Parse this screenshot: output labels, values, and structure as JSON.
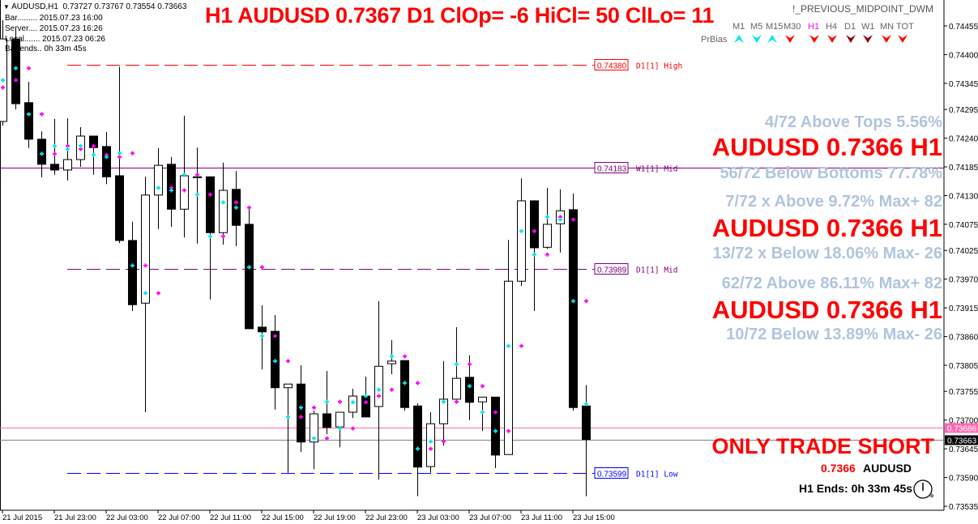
{
  "header": {
    "symbol_line": "AUDUSD,H1  0.73727 0.73767 0.73554 0.73663",
    "bar": "Bar......... 2015.07.23 16:00",
    "server": "Server.... 2015.07.23 16:26",
    "local": "Local....... 2015.07.23 06:26",
    "bar_ends": "Bar ends.. 0h 33m 45s"
  },
  "title": "H1 AUDUSD 0.7367 D1 ClOp= -6 HiCl= 50 ClLo= 11",
  "indicator_name": "!_PREVIOUS_MIDPOINT_DWM",
  "prbias": {
    "label": "PrBias",
    "timeframes": [
      {
        "tf": "M1",
        "dir": "up",
        "color": "#00e5ee"
      },
      {
        "tf": "M5",
        "dir": "down",
        "color": "#00e5ee"
      },
      {
        "tf": "M15",
        "dir": "up",
        "color": "#00e5ee"
      },
      {
        "tf": "M30",
        "dir": "down",
        "color": "#ff0000"
      },
      {
        "tf": "H1",
        "dir": "down",
        "color": "#ff0000",
        "active": true
      },
      {
        "tf": "H4",
        "dir": "down",
        "color": "#ff0000"
      },
      {
        "tf": "D1",
        "dir": "down",
        "color": "#8b0000"
      },
      {
        "tf": "W1",
        "dir": "down",
        "color": "#8b0000"
      },
      {
        "tf": "MN",
        "dir": "down",
        "color": "#ff0000"
      },
      {
        "tf": "TOT",
        "dir": "down",
        "color": "#ff0000"
      }
    ]
  },
  "stats": [
    {
      "text": "4/72 Above Tops 5.56%",
      "kind": "stat"
    },
    {
      "text": "AUDUSD 0.7366 H1",
      "kind": "big"
    },
    {
      "text": "56/72 Below Bottoms 77.78%",
      "kind": "stat"
    },
    {
      "text": "7/72 x Above 9.72% Max+ 82",
      "kind": "stat"
    },
    {
      "text": "AUDUSD 0.7366 H1",
      "kind": "big"
    },
    {
      "text": "13/72 x Below 18.06% Max- 26",
      "kind": "stat"
    },
    {
      "text": "62/72 Above 86.11% Max+ 82",
      "kind": "stat"
    },
    {
      "text": "AUDUSD 0.7366 H1",
      "kind": "big"
    },
    {
      "text": "10/72 Below 13.89% Max- 26",
      "kind": "stat"
    }
  ],
  "signal": "ONLY TRADE SHORT",
  "price_label": "0.7366",
  "symbol_label": "AUDUSD",
  "h1_ends": "H1 Ends: 0h 33m 45s",
  "chart_data": {
    "type": "candlestick",
    "symbol": "AUDUSD",
    "timeframe": "H1",
    "ylim": [
      0.73515,
      0.74505
    ],
    "y_ticks": [
      "0.74455",
      "0.74400",
      "0.74345",
      "0.74295",
      "0.74240",
      "0.74185",
      "0.74130",
      "0.74075",
      "0.74025",
      "0.73970",
      "0.73915",
      "0.73860",
      "0.73805",
      "0.73755",
      "0.73700",
      "0.73645",
      "0.73590",
      "0.73535"
    ],
    "x_ticks": [
      {
        "bar": 0,
        "label": "21 Jul 2015"
      },
      {
        "bar": 4,
        "label": "21 Jul 23:00"
      },
      {
        "bar": 8,
        "label": "22 Jul 03:00"
      },
      {
        "bar": 12,
        "label": "22 Jul 07:00"
      },
      {
        "bar": 16,
        "label": "22 Jul 11:00"
      },
      {
        "bar": 20,
        "label": "22 Jul 15:00"
      },
      {
        "bar": 24,
        "label": "22 Jul 19:00"
      },
      {
        "bar": 28,
        "label": "22 Jul 23:00"
      },
      {
        "bar": 32,
        "label": "23 Jul 03:00"
      },
      {
        "bar": 36,
        "label": "23 Jul 07:00"
      },
      {
        "bar": 40,
        "label": "23 Jul 11:00"
      },
      {
        "bar": 44,
        "label": "23 Jul 15:00"
      }
    ],
    "ohlc": [
      [
        0.74272,
        0.74466,
        0.74264,
        0.7443
      ],
      [
        0.7443,
        0.7445,
        0.74295,
        0.74306
      ],
      [
        0.74308,
        0.74348,
        0.74221,
        0.74238
      ],
      [
        0.74238,
        0.74253,
        0.74165,
        0.7419
      ],
      [
        0.7419,
        0.74277,
        0.7417,
        0.74179
      ],
      [
        0.74179,
        0.74278,
        0.74159,
        0.74199
      ],
      [
        0.74199,
        0.74261,
        0.74185,
        0.74244
      ],
      [
        0.74244,
        0.74244,
        0.7417,
        0.74222
      ],
      [
        0.74224,
        0.74252,
        0.74152,
        0.74166
      ],
      [
        0.74168,
        0.74377,
        0.74039,
        0.74044
      ],
      [
        0.74044,
        0.7408,
        0.73909,
        0.73921
      ],
      [
        0.73924,
        0.74166,
        0.73715,
        0.74131
      ],
      [
        0.74131,
        0.74221,
        0.74066,
        0.74188
      ],
      [
        0.7419,
        0.74204,
        0.7407,
        0.74104
      ],
      [
        0.74104,
        0.74283,
        0.7405,
        0.74168
      ],
      [
        0.74166,
        0.74222,
        0.74038,
        0.74165
      ],
      [
        0.74166,
        0.74166,
        0.73931,
        0.74059
      ],
      [
        0.74059,
        0.74193,
        0.74036,
        0.7414
      ],
      [
        0.74142,
        0.74177,
        0.74033,
        0.74073
      ],
      [
        0.74075,
        0.74107,
        0.73875,
        0.73875
      ],
      [
        0.73878,
        0.7392,
        0.73797,
        0.73869
      ],
      [
        0.7387,
        0.73901,
        0.7372,
        0.73762
      ],
      [
        0.73762,
        0.73769,
        0.73599,
        0.73769
      ],
      [
        0.73769,
        0.73805,
        0.73639,
        0.73658
      ],
      [
        0.73658,
        0.73718,
        0.73606,
        0.73712
      ],
      [
        0.73712,
        0.73794,
        0.73673,
        0.73686
      ],
      [
        0.73687,
        0.73715,
        0.73648,
        0.73715
      ],
      [
        0.73715,
        0.7376,
        0.73704,
        0.73746
      ],
      [
        0.73746,
        0.73783,
        0.73706,
        0.73706
      ],
      [
        0.73726,
        0.73928,
        0.73586,
        0.73803
      ],
      [
        0.73808,
        0.73853,
        0.73788,
        0.73813
      ],
      [
        0.73814,
        0.73814,
        0.73718,
        0.73724
      ],
      [
        0.73727,
        0.73732,
        0.73554,
        0.7361
      ],
      [
        0.73611,
        0.73715,
        0.73599,
        0.73693
      ],
      [
        0.73693,
        0.73813,
        0.73651,
        0.7374
      ],
      [
        0.7374,
        0.73878,
        0.7374,
        0.7378
      ],
      [
        0.73782,
        0.73824,
        0.737,
        0.73734
      ],
      [
        0.73735,
        0.73744,
        0.73679,
        0.73744
      ],
      [
        0.73744,
        0.73744,
        0.73608,
        0.73633
      ],
      [
        0.73634,
        0.74045,
        0.73634,
        0.73966
      ],
      [
        0.73966,
        0.74163,
        0.73957,
        0.7412
      ],
      [
        0.7412,
        0.74121,
        0.73909,
        0.7403
      ],
      [
        0.74031,
        0.74145,
        0.74028,
        0.74075
      ],
      [
        0.74076,
        0.74142,
        0.74021,
        0.74101
      ],
      [
        0.74103,
        0.74134,
        0.73718,
        0.73724
      ],
      [
        0.73727,
        0.73767,
        0.73554,
        0.73663
      ]
    ],
    "cyan_marks": [
      0.74351,
      0.74374,
      0.74286,
      0.7421,
      0.74225,
      0.74219,
      0.74225,
      0.74208,
      0.74204,
      0.74211,
      0.73996,
      0.73943,
      0.74145,
      0.7414,
      0.7417,
      0.74132,
      0.74052,
      0.74117,
      0.74107,
      0.73993,
      0.73861,
      0.73813,
      0.73706,
      0.73724,
      0.73665,
      0.73735,
      0.73684,
      0.73734,
      0.73746,
      0.73758,
      0.73822,
      0.73771,
      0.73645,
      0.73659,
      0.73735,
      0.73807,
      0.73765,
      0.73715,
      0.73679,
      0.73842,
      0.74062,
      0.74017,
      0.74089,
      0.74084,
      0.73928,
      0.73731
    ],
    "magenta_marks": [
      0.74337,
      0.74351,
      0.74374,
      0.74286,
      0.7421,
      0.74225,
      0.74219,
      0.74225,
      0.74208,
      0.74204,
      0.74211,
      0.73996,
      0.73943,
      0.74145,
      0.7414,
      0.7417,
      0.74132,
      0.74052,
      0.74117,
      0.74107,
      0.73993,
      0.73861,
      0.73813,
      0.73706,
      0.73724,
      0.73665,
      0.73735,
      0.73684,
      0.73734,
      0.73746,
      0.73758,
      0.73822,
      0.73771,
      0.73645,
      0.73659,
      0.73735,
      0.73807,
      0.73765,
      0.73715,
      0.73679,
      0.73842,
      0.74062,
      0.74017,
      0.74089,
      0.74084,
      0.73928
    ],
    "levels": [
      {
        "price": 0.7438,
        "label": "0.74380",
        "name": "D1[1] High",
        "color": "#ff0000",
        "style": "dashed",
        "from_bar": 5
      },
      {
        "price": 0.74183,
        "label": "0.74183",
        "name": "W1[1] Mid",
        "color": "#800080",
        "style": "solid",
        "from_bar": 0
      },
      {
        "price": 0.73989,
        "label": "0.73989",
        "name": "D1[1] Mid",
        "color": "#800080",
        "style": "dashed",
        "from_bar": 5
      },
      {
        "price": 0.73599,
        "label": "0.73599",
        "name": "D1[1] Low",
        "color": "#0000ff",
        "style": "dashed",
        "from_bar": 5
      }
    ],
    "ask_line": {
      "price": 0.73686,
      "label": "0.73686",
      "color": "#ff69b4"
    },
    "bid_line": {
      "price": 0.73663,
      "label": "0.73663",
      "color": "#808080"
    }
  }
}
